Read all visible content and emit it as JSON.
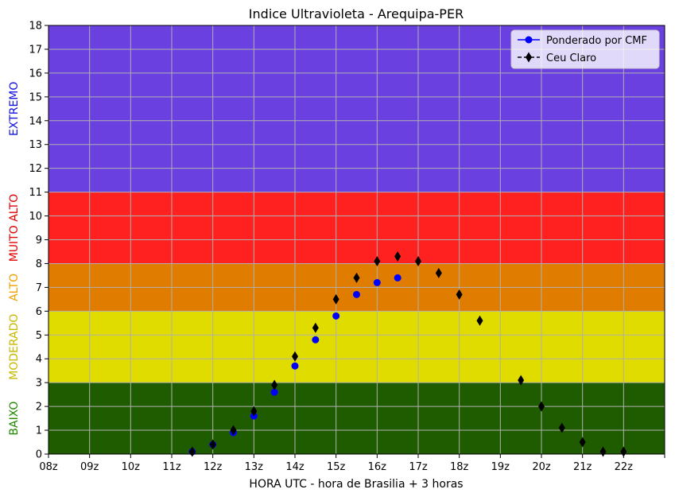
{
  "chart_data": {
    "type": "scatter",
    "title": "Indice Ultravioleta - Arequipa-PER",
    "xlabel": "HORA UTC - hora de Brasilia + 3 horas",
    "ylabel": "",
    "xlim": [
      8,
      23
    ],
    "ylim": [
      0,
      18
    ],
    "x_ticks": [
      {
        "value": 8,
        "label": "08z"
      },
      {
        "value": 9,
        "label": "09z"
      },
      {
        "value": 10,
        "label": "10z"
      },
      {
        "value": 11,
        "label": "11z"
      },
      {
        "value": 12,
        "label": "12z"
      },
      {
        "value": 13,
        "label": "13z"
      },
      {
        "value": 14,
        "label": "14z"
      },
      {
        "value": 15,
        "label": "15z"
      },
      {
        "value": 16,
        "label": "16z"
      },
      {
        "value": 17,
        "label": "17z"
      },
      {
        "value": 18,
        "label": "18z"
      },
      {
        "value": 19,
        "label": "19z"
      },
      {
        "value": 20,
        "label": "20z"
      },
      {
        "value": 21,
        "label": "21z"
      },
      {
        "value": 22,
        "label": "22z"
      },
      {
        "value": 23,
        "label": ""
      }
    ],
    "y_ticks": [
      0,
      1,
      2,
      3,
      4,
      5,
      6,
      7,
      8,
      9,
      10,
      11,
      12,
      13,
      14,
      15,
      16,
      17,
      18
    ],
    "grid": true,
    "legend_position": "top-right",
    "bands": [
      {
        "name": "BAIXO",
        "from": 0,
        "to": 3,
        "color": "#1f5c00",
        "label_color": "#1f8a00"
      },
      {
        "name": "MODERADO",
        "from": 3,
        "to": 6,
        "color": "#e0dc00",
        "label_color": "#c8b800"
      },
      {
        "name": "ALTO",
        "from": 6,
        "to": 8,
        "color": "#e07c00",
        "label_color": "#f0a000"
      },
      {
        "name": "MUITO ALTO",
        "from": 8,
        "to": 11,
        "color": "#ff2020",
        "label_color": "#e00000"
      },
      {
        "name": "EXTREMO",
        "from": 11,
        "to": 18,
        "color": "#6a40e0",
        "label_color": "#1010e0"
      }
    ],
    "series": [
      {
        "name": "Ponderado por CMF",
        "marker": "circle",
        "color": "#0000ff",
        "x": [
          11.5,
          12.0,
          12.5,
          13.0,
          13.5,
          14.0,
          14.5,
          15.0,
          15.5,
          16.0,
          16.5
        ],
        "values": [
          0.1,
          0.4,
          0.9,
          1.6,
          2.6,
          3.7,
          4.8,
          5.8,
          6.7,
          7.2,
          7.4
        ]
      },
      {
        "name": "Ceu Claro",
        "marker": "diamond",
        "color": "#000000",
        "x": [
          11.5,
          12.0,
          12.5,
          13.0,
          13.5,
          14.0,
          14.5,
          15.0,
          15.5,
          16.0,
          16.5,
          17.0,
          17.5,
          18.0,
          18.5,
          19.5,
          20.0,
          20.5,
          21.0,
          21.5,
          22.0
        ],
        "values": [
          0.1,
          0.4,
          1.0,
          1.8,
          2.9,
          4.1,
          5.3,
          6.5,
          7.4,
          8.1,
          8.3,
          8.1,
          7.6,
          6.7,
          5.6,
          3.1,
          2.0,
          1.1,
          0.5,
          0.1,
          0.1
        ]
      }
    ]
  }
}
